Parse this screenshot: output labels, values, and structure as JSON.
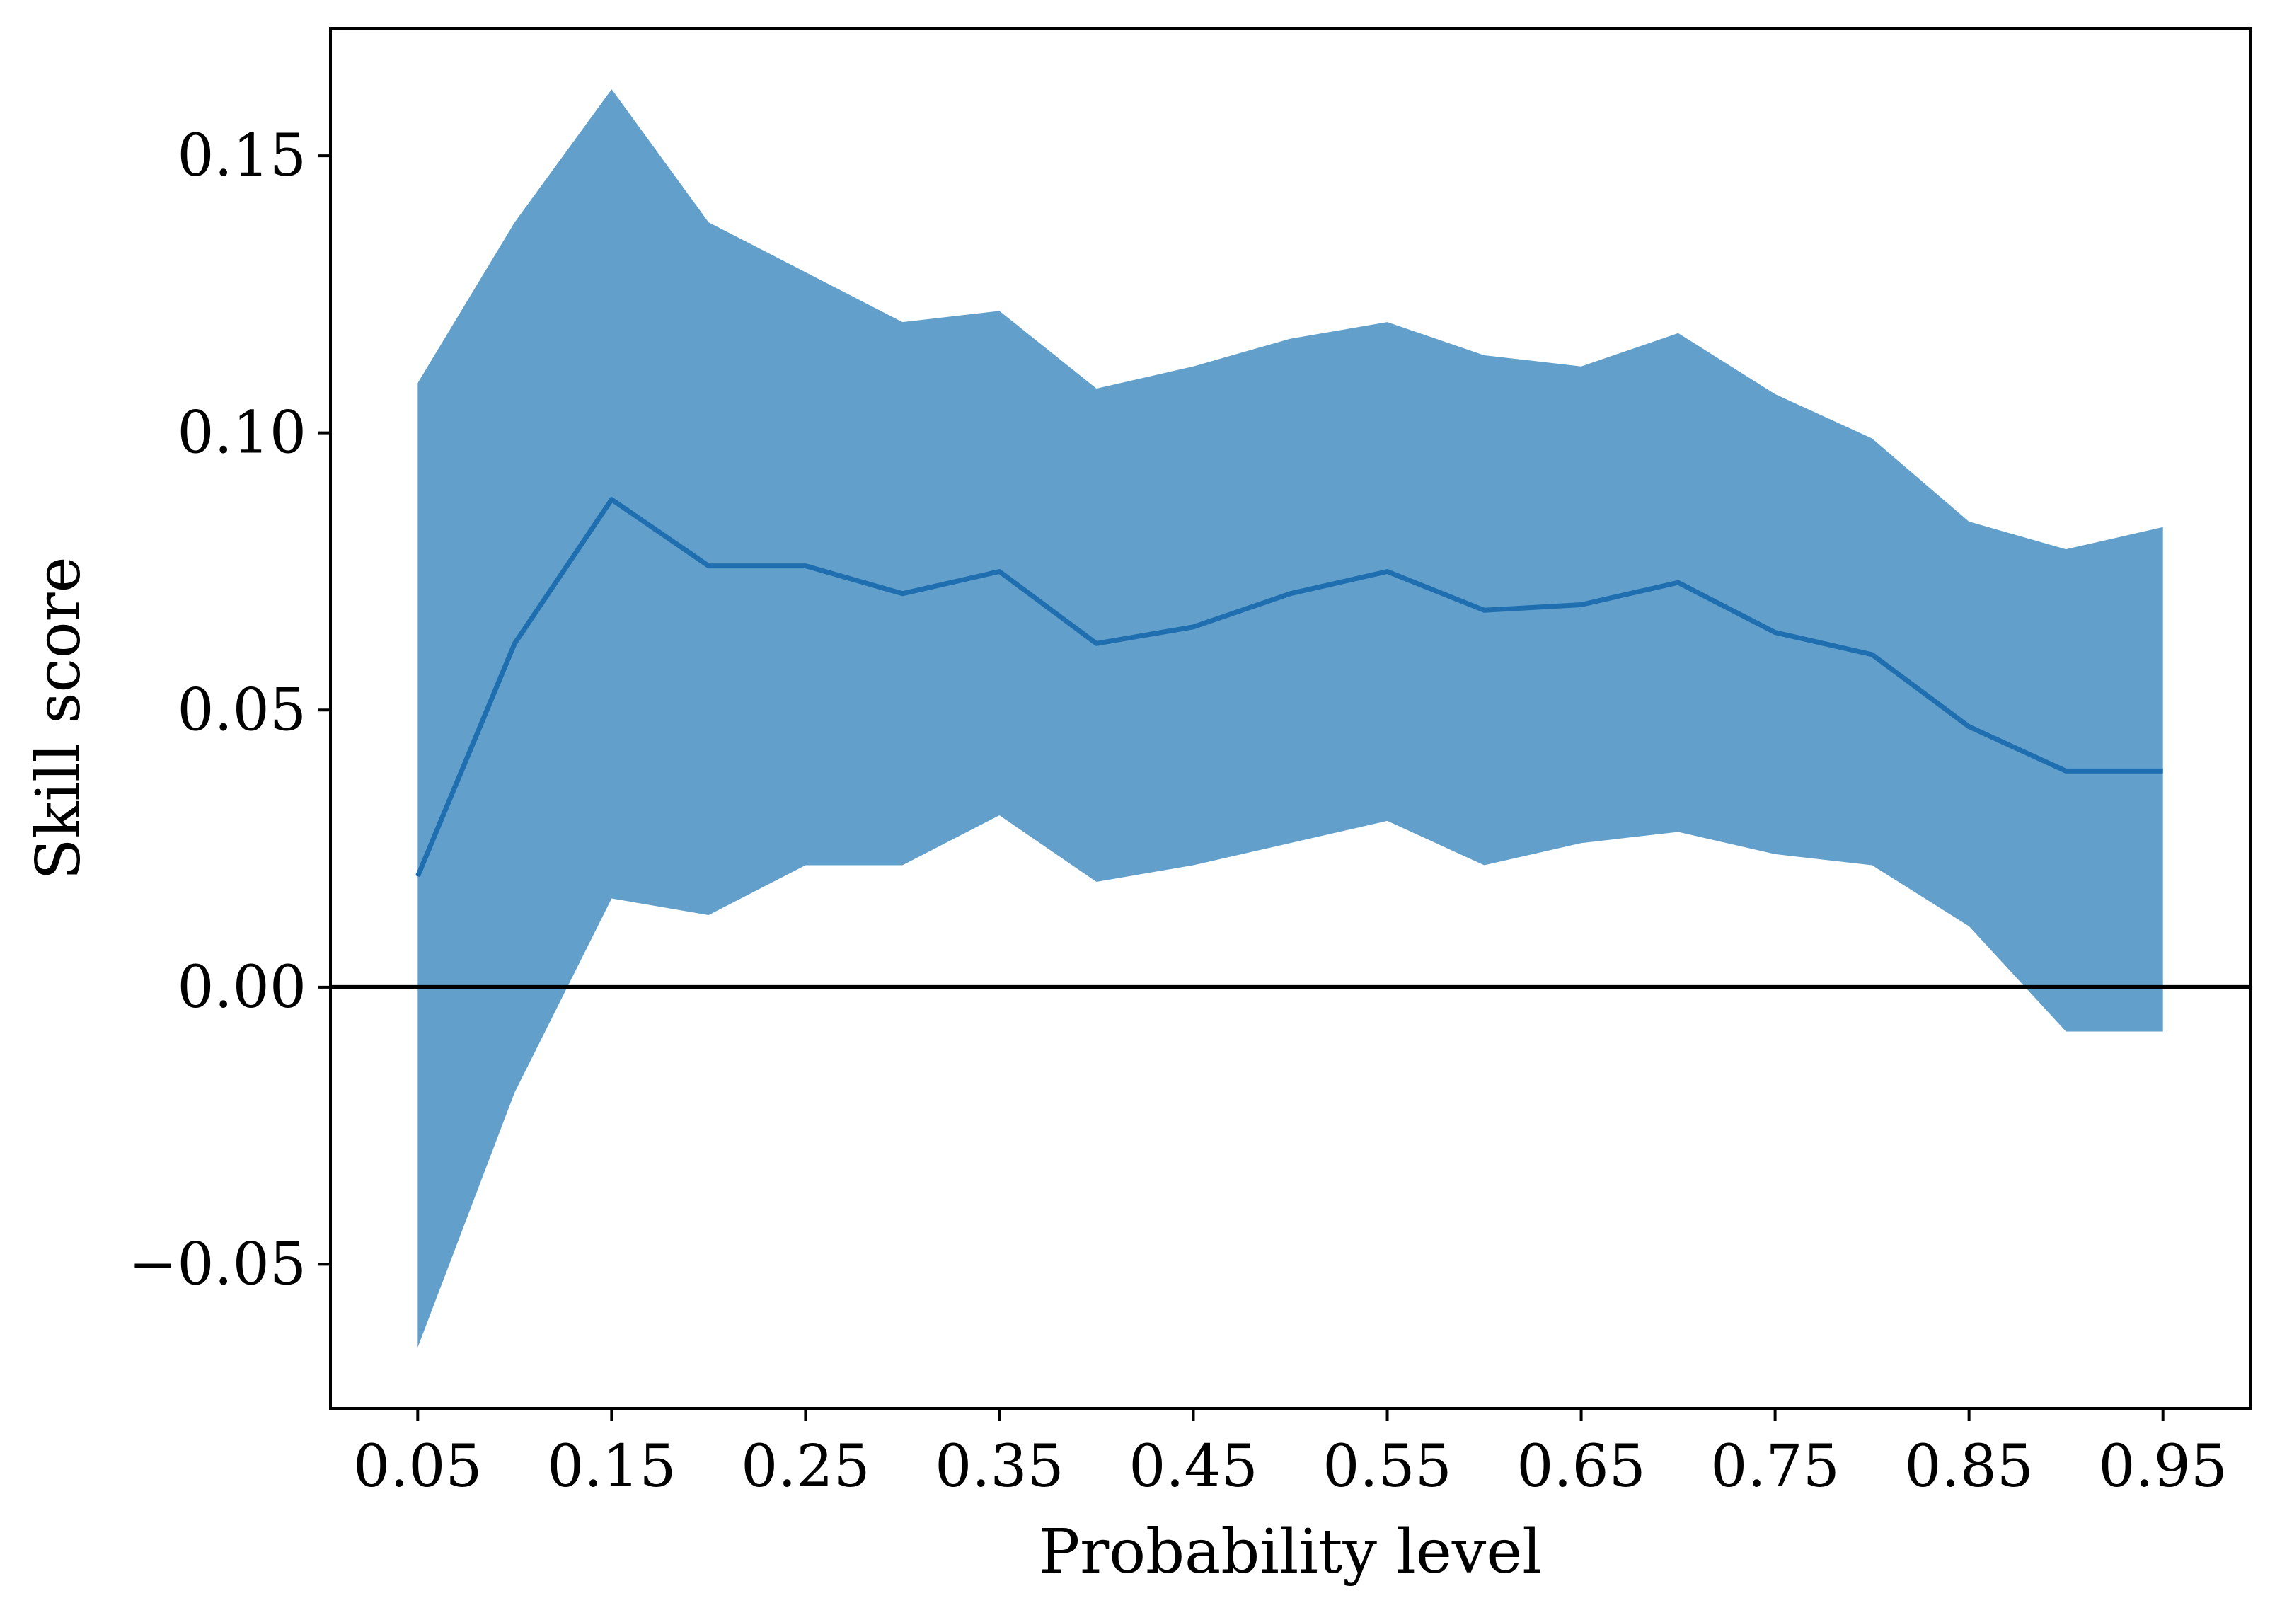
{
  "chart_data": {
    "type": "line",
    "title": "",
    "xlabel": "Probability level",
    "ylabel": "Skill score",
    "xlim": [
      0.005,
      0.995
    ],
    "ylim": [
      -0.076,
      0.173
    ],
    "x": [
      0.05,
      0.1,
      0.15,
      0.2,
      0.25,
      0.3,
      0.35,
      0.4,
      0.45,
      0.5,
      0.55,
      0.6,
      0.65,
      0.7,
      0.75,
      0.8,
      0.85,
      0.9,
      0.95
    ],
    "series": [
      {
        "values": [
          0.02,
          0.062,
          0.088,
          0.076,
          0.076,
          0.071,
          0.075,
          0.062,
          0.065,
          0.071,
          0.075,
          0.068,
          0.069,
          0.073,
          0.064,
          0.06,
          0.047,
          0.039,
          0.039
        ],
        "lower": [
          -0.065,
          -0.019,
          0.016,
          0.013,
          0.022,
          0.022,
          0.031,
          0.019,
          0.022,
          0.026,
          0.03,
          0.022,
          0.026,
          0.028,
          0.024,
          0.022,
          0.011,
          -0.008,
          -0.008
        ],
        "upper": [
          0.109,
          0.138,
          0.162,
          0.138,
          0.129,
          0.12,
          0.122,
          0.108,
          0.112,
          0.117,
          0.12,
          0.114,
          0.112,
          0.118,
          0.107,
          0.099,
          0.084,
          0.079,
          0.083
        ]
      }
    ],
    "hline": 0.0,
    "xticks": [
      0.05,
      0.15,
      0.25,
      0.35,
      0.45,
      0.55,
      0.65,
      0.75,
      0.85,
      0.95
    ],
    "xtick_labels": [
      "0.05",
      "0.15",
      "0.25",
      "0.35",
      "0.45",
      "0.55",
      "0.65",
      "0.75",
      "0.85",
      "0.95"
    ],
    "yticks": [
      -0.05,
      0.0,
      0.05,
      0.1,
      0.15
    ],
    "ytick_labels": [
      "−0.05",
      "0.00",
      "0.05",
      "0.10",
      "0.15"
    ],
    "grid": false,
    "colors": {
      "line": "#1f6fb0",
      "band": "#62a0cb",
      "hline": "#000000"
    }
  }
}
